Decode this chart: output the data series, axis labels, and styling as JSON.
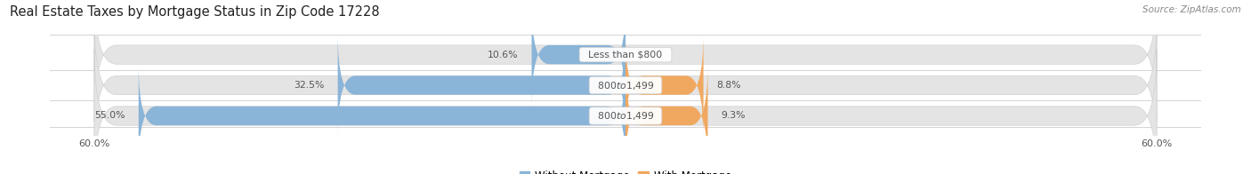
{
  "title": "Real Estate Taxes by Mortgage Status in Zip Code 17228",
  "source": "Source: ZipAtlas.com",
  "rows": [
    {
      "label": "Less than $800",
      "without_pct": 10.6,
      "with_pct": 0.0
    },
    {
      "label": "$800 to $1,499",
      "without_pct": 32.5,
      "with_pct": 8.8
    },
    {
      "label": "$800 to $1,499",
      "without_pct": 55.0,
      "with_pct": 9.3
    }
  ],
  "max_val": 60.0,
  "color_without": "#8ab4d8",
  "color_with": "#f0a860",
  "bar_bg_color": "#e4e4e4",
  "bar_height": 0.62,
  "fig_bg": "#ffffff",
  "title_fontsize": 10.5,
  "source_fontsize": 7.5,
  "label_fontsize": 7.8,
  "pct_fontsize": 7.8,
  "legend_fontsize": 8.5,
  "axis_label_fontsize": 8.0,
  "wo_pct_color": "#555555",
  "wi_pct_color": "#555555",
  "label_text_color": "#555555",
  "wo_inner_color": "#ffffff",
  "separator_color": "#cccccc"
}
